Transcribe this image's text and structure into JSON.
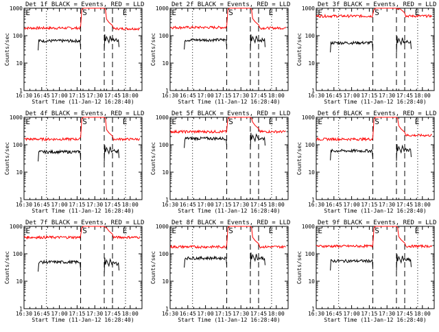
{
  "figure": {
    "ylabel": "Counts/sec",
    "xlabel": "Start Time (11-Jan-12 16:28:40)",
    "yticks": [
      "1",
      "10",
      "100",
      "1000"
    ],
    "xticks": [
      "16:30",
      "16:45",
      "17:00",
      "17:15",
      "17:30",
      "17:45",
      "18:00"
    ],
    "markers": [
      "E",
      "S",
      "E"
    ],
    "colors": {
      "events": "#000000",
      "lld": "#ff0000"
    }
  },
  "chart_data": [
    {
      "type": "line",
      "title": "Det 1f BLACK = Events, RED = LLD",
      "ylim": [
        1,
        1000
      ],
      "yscale": "log",
      "xlim": [
        "16:30",
        "18:10"
      ],
      "series": [
        {
          "name": "Events",
          "level": 65,
          "post_level": 70
        },
        {
          "name": "LLD",
          "level": 190,
          "post_level": 180
        }
      ]
    },
    {
      "type": "line",
      "title": "Det 2f BLACK = Events, RED = LLD",
      "ylim": [
        1,
        1000
      ],
      "yscale": "log",
      "xlim": [
        "16:30",
        "18:10"
      ],
      "series": [
        {
          "name": "Events",
          "level": 70,
          "post_level": 70
        },
        {
          "name": "LLD",
          "level": 200,
          "post_level": 190
        }
      ]
    },
    {
      "type": "line",
      "title": "Det 3f BLACK = Events, RED = LLD",
      "ylim": [
        1,
        1000
      ],
      "yscale": "log",
      "xlim": [
        "16:30",
        "18:10"
      ],
      "series": [
        {
          "name": "Events",
          "level": 55,
          "post_level": 60
        },
        {
          "name": "LLD",
          "level": 520,
          "post_level": 520
        }
      ]
    },
    {
      "type": "line",
      "title": "Det 4f BLACK = Events, RED = LLD",
      "ylim": [
        1,
        1000
      ],
      "yscale": "log",
      "xlim": [
        "16:30",
        "18:10"
      ],
      "series": [
        {
          "name": "Events",
          "level": 55,
          "post_level": 60
        },
        {
          "name": "LLD",
          "level": 160,
          "post_level": 160
        }
      ]
    },
    {
      "type": "line",
      "title": "Det 5f BLACK = Events, RED = LLD",
      "ylim": [
        1,
        1000
      ],
      "yscale": "log",
      "xlim": [
        "16:30",
        "18:10"
      ],
      "series": [
        {
          "name": "Events",
          "level": 170,
          "post_level": 170
        },
        {
          "name": "LLD",
          "level": 300,
          "post_level": 300
        }
      ]
    },
    {
      "type": "line",
      "title": "Det 6f BLACK = Events, RED = LLD",
      "ylim": [
        1,
        1000
      ],
      "yscale": "log",
      "xlim": [
        "16:30",
        "18:10"
      ],
      "series": [
        {
          "name": "Events",
          "level": 60,
          "post_level": 65
        },
        {
          "name": "LLD",
          "level": 160,
          "post_level": 220
        }
      ]
    },
    {
      "type": "line",
      "title": "Det 7f BLACK = Events, RED = LLD",
      "ylim": [
        1,
        1000
      ],
      "yscale": "log",
      "xlim": [
        "16:30",
        "18:10"
      ],
      "series": [
        {
          "name": "Events",
          "level": 50,
          "post_level": 45
        },
        {
          "name": "LLD",
          "level": 400,
          "post_level": 400
        }
      ]
    },
    {
      "type": "line",
      "title": "Det 8f BLACK = Events, RED = LLD",
      "ylim": [
        1,
        1000
      ],
      "yscale": "log",
      "xlim": [
        "16:30",
        "18:10"
      ],
      "series": [
        {
          "name": "Events",
          "level": 70,
          "post_level": 70
        },
        {
          "name": "LLD",
          "level": 180,
          "post_level": 180
        }
      ]
    },
    {
      "type": "line",
      "title": "Det 9f BLACK = Events, RED = LLD",
      "ylim": [
        1,
        1000
      ],
      "yscale": "log",
      "xlim": [
        "16:30",
        "18:10"
      ],
      "series": [
        {
          "name": "Events",
          "level": 55,
          "post_level": 60
        },
        {
          "name": "LLD",
          "level": 190,
          "post_level": 190
        }
      ]
    }
  ]
}
